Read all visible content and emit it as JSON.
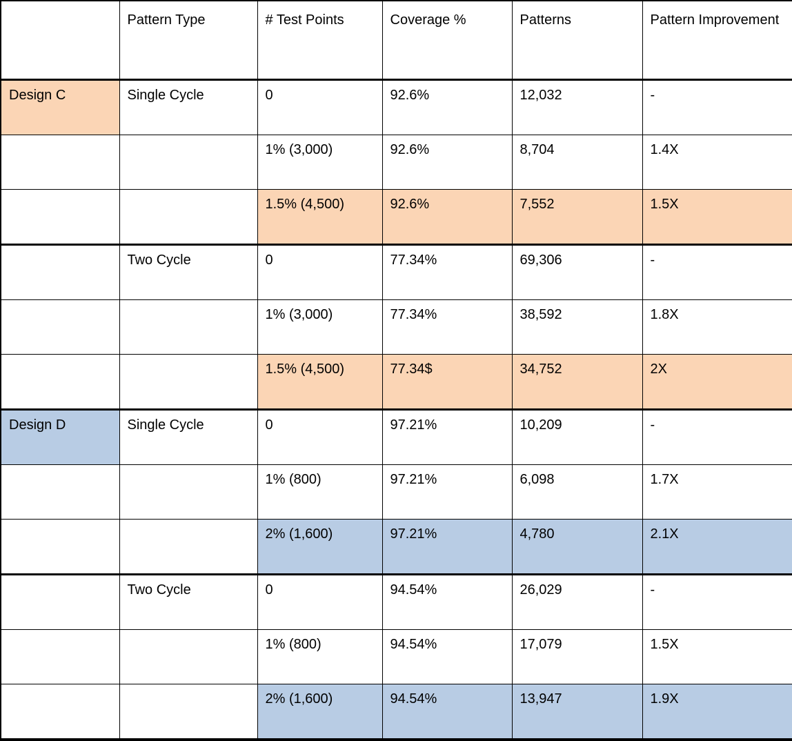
{
  "table": {
    "description": "Test point insertion pattern results table",
    "colors": {
      "orange": "#FBD5B5",
      "blue": "#B8CCE4",
      "border": "#000000",
      "text": "#000000"
    },
    "columns": [
      {
        "key": "design",
        "label": ""
      },
      {
        "key": "pattern-type",
        "label": "Pattern Type"
      },
      {
        "key": "test-points",
        "label": "# Test Points"
      },
      {
        "key": "coverage",
        "label": "Coverage %"
      },
      {
        "key": "patterns",
        "label": "Patterns"
      },
      {
        "key": "pattern-improvement",
        "label": "Pattern Improvement"
      }
    ],
    "rows": [
      {
        "cells": [
          "Design C",
          "Single Cycle",
          "0",
          "92.6%",
          "12,032",
          "-"
        ],
        "fills": [
          "orange",
          null,
          null,
          null,
          null,
          null
        ],
        "group_end": false
      },
      {
        "cells": [
          "",
          "",
          "1% (3,000)",
          "92.6%",
          "8,704",
          "1.4X"
        ],
        "fills": [
          null,
          null,
          null,
          null,
          null,
          null
        ],
        "group_end": false
      },
      {
        "cells": [
          "",
          "",
          "1.5% (4,500)",
          "92.6%",
          "7,552",
          "1.5X"
        ],
        "fills": [
          null,
          null,
          "orange",
          "orange",
          "orange",
          "orange"
        ],
        "group_end": true
      },
      {
        "cells": [
          "",
          "Two Cycle",
          "0",
          "77.34%",
          "69,306",
          "-"
        ],
        "fills": [
          null,
          null,
          null,
          null,
          null,
          null
        ],
        "group_end": false
      },
      {
        "cells": [
          "",
          "",
          "1% (3,000)",
          "77.34%",
          "38,592",
          "1.8X"
        ],
        "fills": [
          null,
          null,
          null,
          null,
          null,
          null
        ],
        "group_end": false
      },
      {
        "cells": [
          "",
          "",
          "1.5% (4,500)",
          "77.34$",
          "34,752",
          "2X"
        ],
        "fills": [
          null,
          null,
          "orange",
          "orange",
          "orange",
          "orange"
        ],
        "group_end": true
      },
      {
        "cells": [
          "Design D",
          "Single Cycle",
          "0",
          "97.21%",
          "10,209",
          "-"
        ],
        "fills": [
          "blue",
          null,
          null,
          null,
          null,
          null
        ],
        "group_end": false
      },
      {
        "cells": [
          "",
          "",
          "1% (800)",
          "97.21%",
          "6,098",
          "1.7X"
        ],
        "fills": [
          null,
          null,
          null,
          null,
          null,
          null
        ],
        "group_end": false
      },
      {
        "cells": [
          "",
          "",
          "2% (1,600)",
          "97.21%",
          "4,780",
          "2.1X"
        ],
        "fills": [
          null,
          null,
          "blue",
          "blue",
          "blue",
          "blue"
        ],
        "group_end": true
      },
      {
        "cells": [
          "",
          "Two Cycle",
          "0",
          "94.54%",
          "26,029",
          "-"
        ],
        "fills": [
          null,
          null,
          null,
          null,
          null,
          null
        ],
        "group_end": false
      },
      {
        "cells": [
          "",
          "",
          "1% (800)",
          "94.54%",
          "17,079",
          "1.5X"
        ],
        "fills": [
          null,
          null,
          null,
          null,
          null,
          null
        ],
        "group_end": false
      },
      {
        "cells": [
          "",
          "",
          "2% (1,600)",
          "94.54%",
          "13,947",
          "1.9X"
        ],
        "fills": [
          null,
          null,
          "blue",
          "blue",
          "blue",
          "blue"
        ],
        "group_end": false
      }
    ]
  }
}
